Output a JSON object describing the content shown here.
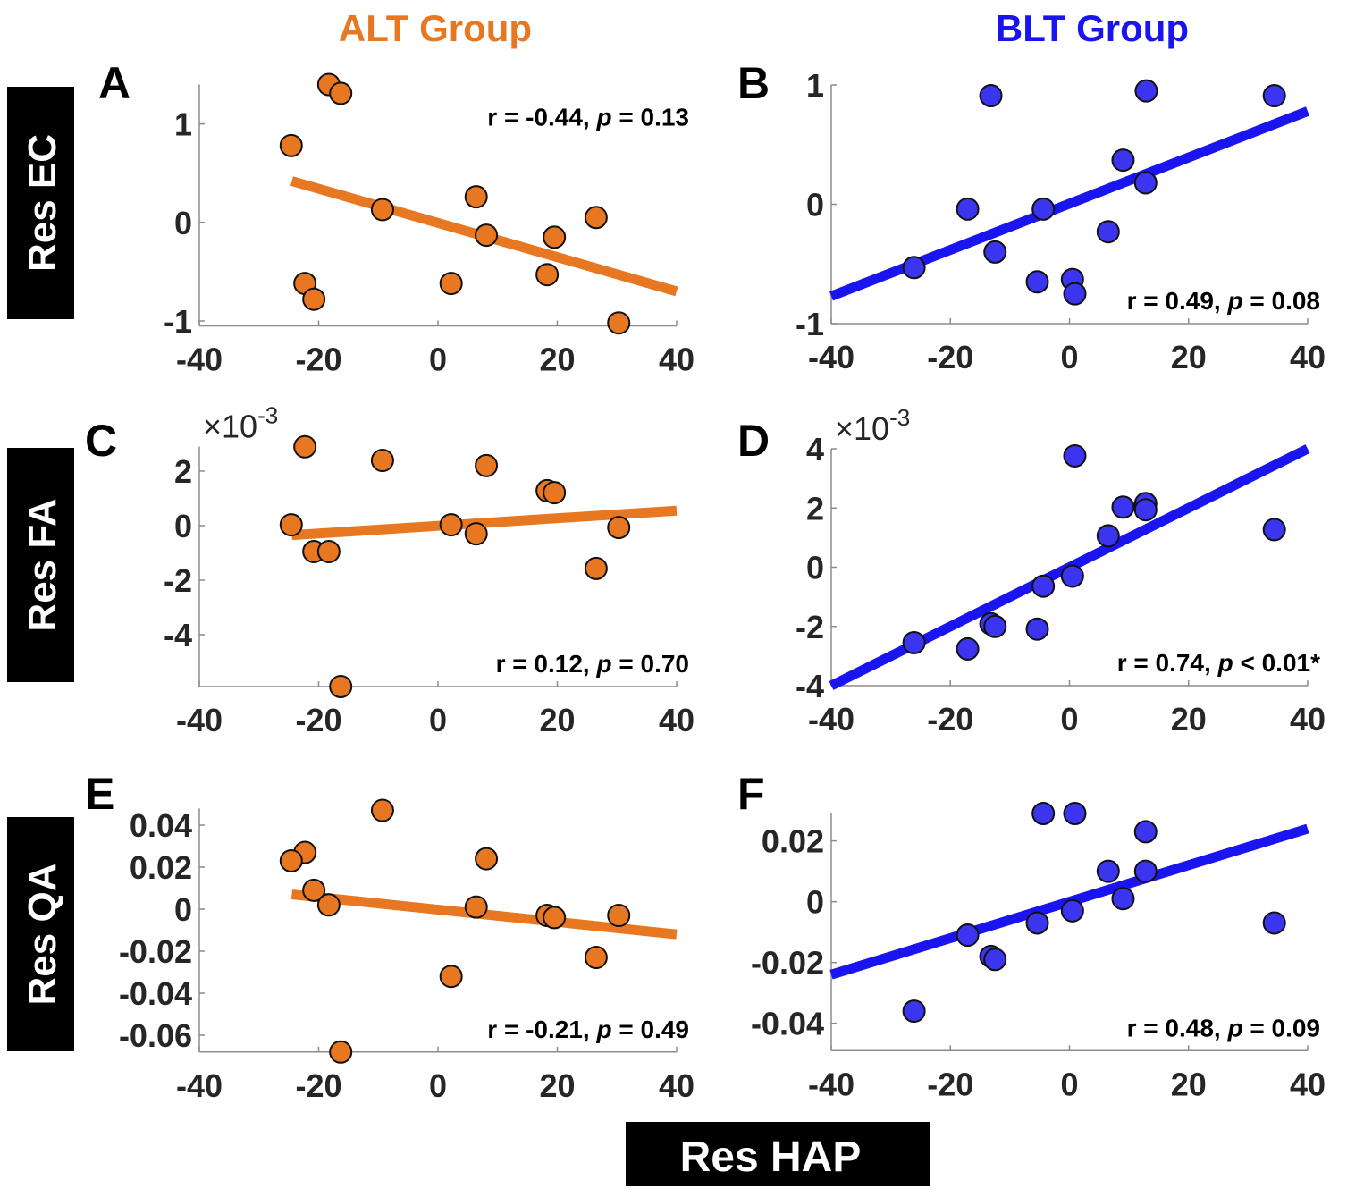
{
  "figure": {
    "column_titles": [
      {
        "text": "ALT Group",
        "color": "#E87722"
      },
      {
        "text": "BLT Group",
        "color": "#1A14F0"
      }
    ],
    "row_labels": [
      "Res EC",
      "Res FA",
      "Res QA"
    ],
    "shared_xlabel": "Res HAP",
    "colors": {
      "alt": "#E87722",
      "blt": "#3B35F0",
      "blt_line": "#1A14F0",
      "marker_edge": "#111111"
    }
  },
  "chart_data": [
    {
      "type": "scatter",
      "panel": "A",
      "group": "ALT Group",
      "row": "Res EC",
      "xlim": [
        -40,
        40
      ],
      "ylim": [
        -1.05,
        1.4
      ],
      "xticks": [
        -40,
        -20,
        0,
        20,
        40
      ],
      "xtick_labels": [
        "-40",
        "-20",
        "0",
        "20",
        "40"
      ],
      "yticks": [
        -1,
        0,
        1
      ],
      "ytick_labels": [
        "-1",
        "0",
        "1"
      ],
      "exponent_label": "",
      "stat": {
        "r_text": "r = -0.44, ",
        "p_symbol": "p",
        "p_text": " = 0.13",
        "position": "top-right"
      },
      "points": [
        [
          -24.6,
          0.78
        ],
        [
          -18.3,
          1.4
        ],
        [
          -16.3,
          1.31
        ],
        [
          -9.3,
          0.13
        ],
        [
          -22.3,
          -0.62
        ],
        [
          -20.8,
          -0.78
        ],
        [
          2.2,
          -0.62
        ],
        [
          6.4,
          0.26
        ],
        [
          8.1,
          -0.13
        ],
        [
          18.3,
          -0.53
        ],
        [
          19.5,
          -0.15
        ],
        [
          26.5,
          0.05
        ],
        [
          30.3,
          -1.02
        ]
      ],
      "fit_line": [
        [
          -24.5,
          0.42
        ],
        [
          40,
          -0.7
        ]
      ]
    },
    {
      "type": "scatter",
      "panel": "B",
      "group": "BLT Group",
      "row": "Res EC",
      "xlim": [
        -40,
        40
      ],
      "ylim": [
        -1,
        1
      ],
      "xticks": [
        -40,
        -20,
        0,
        20,
        40
      ],
      "xtick_labels": [
        "-40",
        "-20",
        "0",
        "20",
        "40"
      ],
      "yticks": [
        -1,
        0,
        1
      ],
      "ytick_labels": [
        "-1",
        "0",
        "1"
      ],
      "exponent_label": "",
      "stat": {
        "r_text": "r = 0.49, ",
        "p_symbol": "p",
        "p_text": " = 0.08",
        "position": "bottom-right"
      },
      "points": [
        [
          -13.2,
          0.91
        ],
        [
          12.9,
          0.95
        ],
        [
          34.4,
          0.91
        ],
        [
          9.0,
          0.37
        ],
        [
          12.8,
          0.18
        ],
        [
          -17.1,
          -0.04
        ],
        [
          -4.4,
          -0.04
        ],
        [
          6.5,
          -0.23
        ],
        [
          -12.5,
          -0.4
        ],
        [
          -26.1,
          -0.53
        ],
        [
          -5.4,
          -0.65
        ],
        [
          0.5,
          -0.63
        ],
        [
          0.9,
          -0.75
        ]
      ],
      "fit_line": [
        [
          -40,
          -0.77
        ],
        [
          40,
          0.78
        ]
      ]
    },
    {
      "type": "scatter",
      "panel": "C",
      "group": "ALT Group",
      "row": "Res FA",
      "xlim": [
        -40,
        40
      ],
      "ylim": [
        -5.9,
        2.9
      ],
      "xticks": [
        -40,
        -20,
        0,
        20,
        40
      ],
      "xtick_labels": [
        "-40",
        "-20",
        "0",
        "20",
        "40"
      ],
      "yticks": [
        -4,
        -2,
        0,
        2
      ],
      "ytick_labels": [
        "-4",
        "-2",
        "0",
        "2"
      ],
      "exponent_label": "×10",
      "exponent_power": "-3",
      "stat": {
        "r_text": "r = 0.12, ",
        "p_symbol": "p",
        "p_text": " = 0.70",
        "position": "bottom-right"
      },
      "points": [
        [
          -22.3,
          2.89
        ],
        [
          -9.3,
          2.39
        ],
        [
          8.1,
          2.2
        ],
        [
          18.3,
          1.28
        ],
        [
          19.5,
          1.21
        ],
        [
          -24.6,
          0.03
        ],
        [
          2.2,
          0.03
        ],
        [
          6.4,
          -0.3
        ],
        [
          30.3,
          -0.07
        ],
        [
          -20.8,
          -0.95
        ],
        [
          -18.3,
          -0.95
        ],
        [
          26.5,
          -1.57
        ],
        [
          -16.3,
          -5.9
        ]
      ],
      "fit_line": [
        [
          -24.5,
          -0.35
        ],
        [
          40,
          0.55
        ]
      ]
    },
    {
      "type": "scatter",
      "panel": "D",
      "group": "BLT Group",
      "row": "Res FA",
      "xlim": [
        -40,
        40
      ],
      "ylim": [
        -4,
        4
      ],
      "xticks": [
        -40,
        -20,
        0,
        20,
        40
      ],
      "xtick_labels": [
        "-40",
        "-20",
        "0",
        "20",
        "40"
      ],
      "yticks": [
        -4,
        -2,
        0,
        2,
        4
      ],
      "ytick_labels": [
        "-4",
        "-2",
        "0",
        "2",
        "4"
      ],
      "exponent_label": "×10",
      "exponent_power": "-3",
      "stat": {
        "r_text": "r = 0.74, ",
        "p_symbol": "p",
        "p_text": " < 0.01*",
        "position": "bottom-right"
      },
      "points": [
        [
          0.9,
          3.76
        ],
        [
          9.0,
          2.03
        ],
        [
          12.8,
          2.15
        ],
        [
          12.8,
          1.94
        ],
        [
          6.5,
          1.06
        ],
        [
          34.4,
          1.27
        ],
        [
          0.5,
          -0.3
        ],
        [
          -4.4,
          -0.64
        ],
        [
          -13.2,
          -1.91
        ],
        [
          -12.5,
          -2.0
        ],
        [
          -5.4,
          -2.09
        ],
        [
          -26.1,
          -2.55
        ],
        [
          -17.1,
          -2.76
        ]
      ],
      "fit_line": [
        [
          -40,
          -4.0
        ],
        [
          40,
          4.0
        ]
      ]
    },
    {
      "type": "scatter",
      "panel": "E",
      "group": "ALT Group",
      "row": "Res QA",
      "xlim": [
        -40,
        40
      ],
      "ylim": [
        -0.068,
        0.048
      ],
      "xticks": [
        -40,
        -20,
        0,
        20,
        40
      ],
      "xtick_labels": [
        "-40",
        "-20",
        "0",
        "20",
        "40"
      ],
      "yticks": [
        -0.06,
        -0.04,
        -0.02,
        0,
        0.02,
        0.04
      ],
      "ytick_labels": [
        "-0.06",
        "-0.04",
        "-0.02",
        "0",
        "0.02",
        "0.04"
      ],
      "exponent_label": "",
      "stat": {
        "r_text": "r = -0.21, ",
        "p_symbol": "p",
        "p_text": " = 0.49",
        "position": "bottom-right"
      },
      "points": [
        [
          -9.3,
          0.047
        ],
        [
          -22.3,
          0.027
        ],
        [
          -24.6,
          0.023
        ],
        [
          8.1,
          0.024
        ],
        [
          -20.8,
          0.009
        ],
        [
          -18.3,
          0.002
        ],
        [
          6.4,
          0.001
        ],
        [
          18.3,
          -0.003
        ],
        [
          19.5,
          -0.004
        ],
        [
          30.3,
          -0.003
        ],
        [
          26.5,
          -0.023
        ],
        [
          2.2,
          -0.032
        ],
        [
          -16.3,
          -0.068
        ]
      ],
      "fit_line": [
        [
          -24.5,
          0.007
        ],
        [
          40,
          -0.012
        ]
      ]
    },
    {
      "type": "scatter",
      "panel": "F",
      "group": "BLT Group",
      "row": "Res QA",
      "xlim": [
        -40,
        40
      ],
      "ylim": [
        -0.049,
        0.029
      ],
      "xticks": [
        -40,
        -20,
        0,
        20,
        40
      ],
      "xtick_labels": [
        "-40",
        "-20",
        "0",
        "20",
        "40"
      ],
      "yticks": [
        -0.04,
        -0.02,
        0,
        0.02
      ],
      "ytick_labels": [
        "-0.04",
        "-0.02",
        "0",
        "0.02"
      ],
      "exponent_label": "",
      "stat": {
        "r_text": "r = 0.48, ",
        "p_symbol": "p",
        "p_text": " = 0.09",
        "position": "bottom-right"
      },
      "points": [
        [
          -4.4,
          0.029
        ],
        [
          0.9,
          0.029
        ],
        [
          12.8,
          0.023
        ],
        [
          6.5,
          0.01
        ],
        [
          12.8,
          0.01
        ],
        [
          9.0,
          0.001
        ],
        [
          0.5,
          -0.003
        ],
        [
          -5.4,
          -0.007
        ],
        [
          34.4,
          -0.007
        ],
        [
          -17.1,
          -0.011
        ],
        [
          -13.2,
          -0.018
        ],
        [
          -12.5,
          -0.019
        ],
        [
          -26.1,
          -0.036
        ]
      ],
      "fit_line": [
        [
          -40,
          -0.024
        ],
        [
          40,
          0.024
        ]
      ]
    }
  ]
}
